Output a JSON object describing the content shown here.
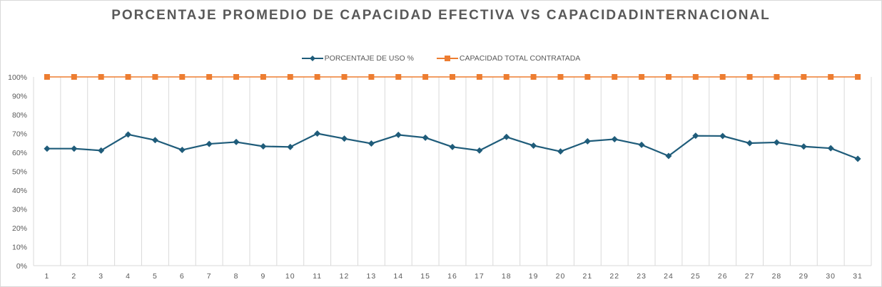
{
  "chart_data": {
    "type": "line",
    "title": "PORCENTAJE PROMEDIO DE CAPACIDAD EFECTIVA VS CAPACIDADINTERNACIONAL",
    "xlabel": "",
    "ylabel": "",
    "categories": [
      "1",
      "2",
      "3",
      "4",
      "5",
      "6",
      "7",
      "8",
      "9",
      "10",
      "11",
      "12",
      "13",
      "14",
      "15",
      "16",
      "17",
      "18",
      "19",
      "20",
      "21",
      "22",
      "23",
      "24",
      "25",
      "26",
      "27",
      "28",
      "29",
      "30",
      "31"
    ],
    "yticks": [
      "0%",
      "10%",
      "20%",
      "30%",
      "40%",
      "50%",
      "60%",
      "70%",
      "80%",
      "90%",
      "100%"
    ],
    "ylim": [
      0,
      1
    ],
    "grid": "vertical",
    "legend_position": "top",
    "series": [
      {
        "name": "PORCENTAJE DE USO %",
        "color": "#1f5c7a",
        "marker": "diamond",
        "values": [
          0.62,
          0.62,
          0.61,
          0.695,
          0.665,
          0.613,
          0.645,
          0.655,
          0.632,
          0.629,
          0.7,
          0.673,
          0.647,
          0.693,
          0.678,
          0.629,
          0.61,
          0.682,
          0.636,
          0.605,
          0.659,
          0.67,
          0.64,
          0.581,
          0.688,
          0.687,
          0.649,
          0.653,
          0.631,
          0.622,
          0.566
        ]
      },
      {
        "name": "CAPACIDAD TOTAL CONTRATADA",
        "color": "#ed7d31",
        "marker": "square",
        "values": [
          1,
          1,
          1,
          1,
          1,
          1,
          1,
          1,
          1,
          1,
          1,
          1,
          1,
          1,
          1,
          1,
          1,
          1,
          1,
          1,
          1,
          1,
          1,
          1,
          1,
          1,
          1,
          1,
          1,
          1,
          1
        ]
      }
    ]
  }
}
